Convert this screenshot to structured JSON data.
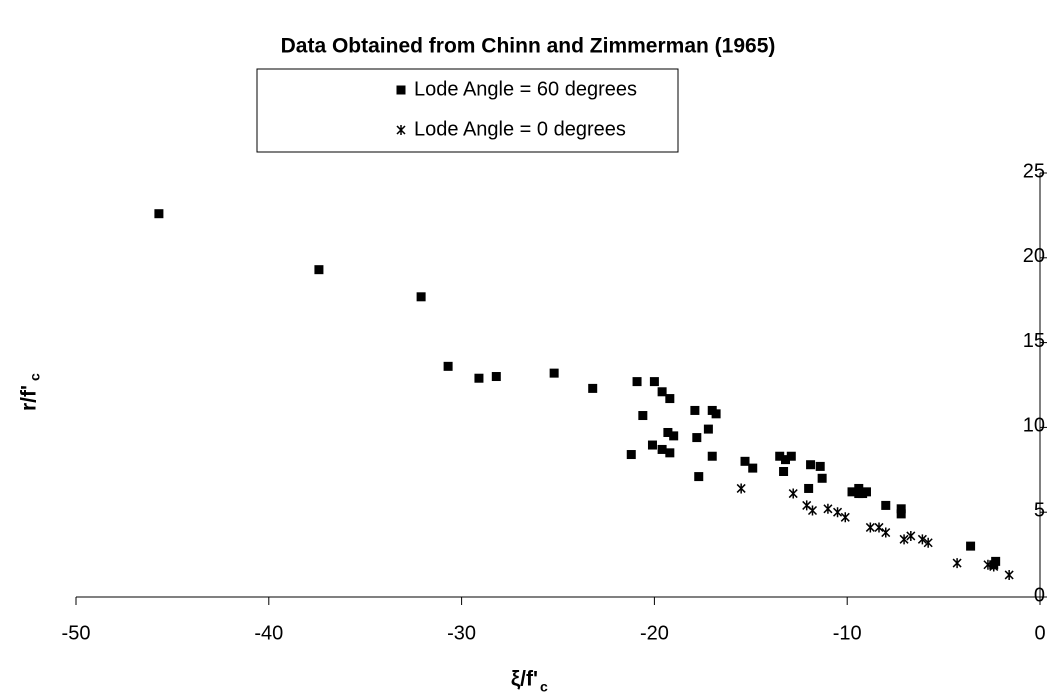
{
  "chart_data": {
    "type": "scatter",
    "title": "Data Obtained from Chinn and Zimmerman (1965)",
    "x_label": "ξ/f'",
    "x_label_sub": "c",
    "y_label": "r/f'",
    "y_label_sub": "c",
    "xlim": [
      -50,
      0
    ],
    "xticks": [
      -50,
      -40,
      -30,
      -20,
      -10,
      0
    ],
    "ylim": [
      0,
      25
    ],
    "yticks": [
      0,
      5,
      10,
      15,
      20,
      25
    ],
    "series": [
      {
        "name": "Lode Angle = 60 degrees",
        "color": "#000000",
        "marker": "square",
        "x": [
          -45.7,
          -37.4,
          -32.1,
          -30.7,
          -29.1,
          -28.2,
          -25.2,
          -23.2,
          -21.2,
          -20.9,
          -20.6,
          -20.1,
          -20.0,
          -19.6,
          -19.6,
          -19.3,
          -19.2,
          -19.2,
          -19.0,
          -17.9,
          -17.8,
          -17.7,
          -17.2,
          -17.0,
          -17.0,
          -16.8,
          -15.3,
          -14.9,
          -13.5,
          -13.3,
          -13.2,
          -12.9,
          -12.0,
          -11.9,
          -11.4,
          -11.3,
          -9.75,
          -9.4,
          -9.4,
          -9.2,
          -9.0,
          -8.0,
          -7.2,
          -7.2,
          -3.6,
          -2.3,
          -2.4
        ],
        "values": [
          22.6,
          19.3,
          17.7,
          13.6,
          12.9,
          13.0,
          13.2,
          12.3,
          8.4,
          12.7,
          10.7,
          8.96,
          12.7,
          8.7,
          12.1,
          9.7,
          11.7,
          8.5,
          9.5,
          11.0,
          9.4,
          7.1,
          9.9,
          11.0,
          8.3,
          10.8,
          8.0,
          7.6,
          8.3,
          7.4,
          8.1,
          8.3,
          6.4,
          7.8,
          7.7,
          7.0,
          6.2,
          6.4,
          6.1,
          6.1,
          6.2,
          5.4,
          5.2,
          4.9,
          3.0,
          2.1,
          1.9
        ]
      },
      {
        "name": "Lode Angle = 0 degrees",
        "color": "#000000",
        "marker": "star",
        "x": [
          -15.5,
          -12.8,
          -12.1,
          -11.8,
          -11.0,
          -10.5,
          -10.1,
          -8.8,
          -8.35,
          -8.0,
          -7.05,
          -6.7,
          -6.1,
          -5.8,
          -4.3,
          -2.7,
          -2.4,
          -1.6
        ],
        "values": [
          6.4,
          6.1,
          5.4,
          5.1,
          5.2,
          5.0,
          4.7,
          4.1,
          4.1,
          3.8,
          3.4,
          3.6,
          3.4,
          3.2,
          2.0,
          1.9,
          1.8,
          1.3
        ]
      }
    ]
  }
}
